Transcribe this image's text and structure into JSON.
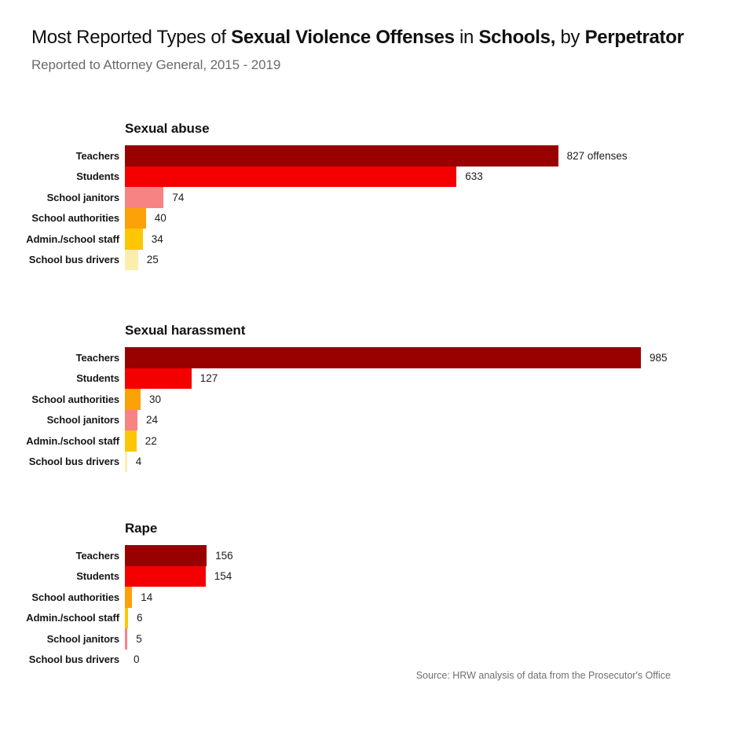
{
  "header": {
    "title_text": "Most Reported Types of Sexual Violence Offenses in Schools, by Perpetrator",
    "title_segments": [
      {
        "text": "Most Reported Types of ",
        "bold": false
      },
      {
        "text": "Sexual Violence Offenses",
        "bold": true
      },
      {
        "text": " in ",
        "bold": false
      },
      {
        "text": "Schools,",
        "bold": true
      },
      {
        "text": " by ",
        "bold": false
      },
      {
        "text": "Perpetrator",
        "bold": true
      }
    ],
    "subtitle": "Reported to Attorney General, 2015 - 2019"
  },
  "footer": {
    "source": "Source: HRW analysis of data from the Prosecutor's Office"
  },
  "palette": {
    "dark_red": "#990000",
    "red": "#f40000",
    "salmon": "#f78383",
    "orange": "#fca108",
    "gold": "#fcc603",
    "pale_yellow": "#fbeead"
  },
  "chart_data": [
    {
      "type": "bar",
      "orientation": "horizontal",
      "title": "Sexual abuse",
      "categories": [
        "Teachers",
        "Students",
        "School janitors",
        "School authorities",
        "Admin./school staff",
        "School bus drivers"
      ],
      "values": [
        827,
        633,
        74,
        40,
        34,
        25
      ],
      "value_labels": [
        "827 offenses",
        "633",
        "74",
        "40",
        "34",
        "25"
      ],
      "colors": [
        "dark_red",
        "red",
        "salmon",
        "orange",
        "gold",
        "pale_yellow"
      ],
      "xlim": [
        0,
        1000
      ],
      "grid": false,
      "legend": "none"
    },
    {
      "type": "bar",
      "orientation": "horizontal",
      "title": "Sexual harassment",
      "categories": [
        "Teachers",
        "Students",
        "School authorities",
        "School janitors",
        "Admin./school staff",
        "School bus drivers"
      ],
      "values": [
        985,
        127,
        30,
        24,
        22,
        4
      ],
      "value_labels": [
        "985",
        "127",
        "30",
        "24",
        "22",
        "4"
      ],
      "colors": [
        "dark_red",
        "red",
        "orange",
        "salmon",
        "gold",
        "pale_yellow"
      ],
      "xlim": [
        0,
        1000
      ],
      "grid": false,
      "legend": "none"
    },
    {
      "type": "bar",
      "orientation": "horizontal",
      "title": "Rape",
      "categories": [
        "Teachers",
        "Students",
        "School authorities",
        "Admin./school staff",
        "School janitors",
        "School bus drivers"
      ],
      "values": [
        156,
        154,
        14,
        6,
        5,
        0
      ],
      "value_labels": [
        "156",
        "154",
        "14",
        "6",
        "5",
        "0"
      ],
      "colors": [
        "dark_red",
        "red",
        "orange",
        "gold",
        "salmon",
        "pale_yellow"
      ],
      "xlim": [
        0,
        1000
      ],
      "grid": false,
      "legend": "none"
    }
  ]
}
